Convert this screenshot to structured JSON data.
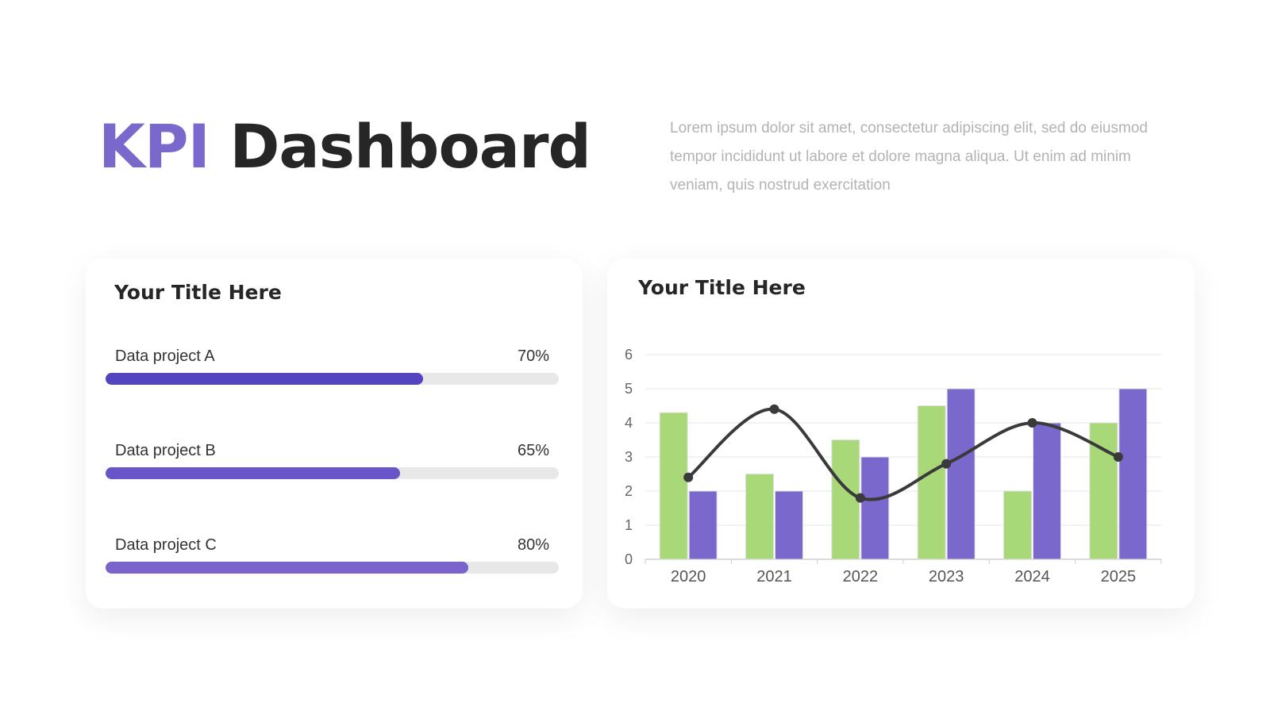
{
  "header": {
    "title": [
      "KPI",
      "Dashboard"
    ],
    "description": "Lorem ipsum dolor sit amet, consectetur adipiscing elit, sed do eiusmod tempor incididunt ut labore et dolore magna aliqua. Ut enim ad minim veniam, quis nostrud exercitation"
  },
  "chart_data": [
    {
      "type": "progress",
      "title": "Your Title Here",
      "xlim": [
        0,
        100
      ],
      "categories": [
        "Data project A",
        "Data project B",
        "Data project C"
      ],
      "values": [
        70,
        65,
        80
      ],
      "value_labels": [
        "70%",
        "65%",
        "80%"
      ],
      "colors": [
        "#5544c0",
        "#6a55c8",
        "#7a64cc"
      ]
    },
    {
      "type": "bar",
      "title": "Your Title Here",
      "categories": [
        "2020",
        "2021",
        "2022",
        "2023",
        "2024",
        "2025"
      ],
      "series": [
        {
          "color": "#a8d878",
          "values": [
            4.3,
            2.5,
            3.5,
            4.5,
            2,
            4
          ]
        },
        {
          "color": "#7b68cc",
          "values": [
            2,
            2,
            3,
            5,
            4,
            5
          ]
        },
        {
          "type": "line",
          "color": "#3a3a3a",
          "values": [
            2.4,
            4.4,
            1.8,
            2.8,
            4,
            3
          ]
        }
      ],
      "ylim": [
        0,
        6
      ],
      "yticks": [
        0,
        1,
        2,
        3,
        4,
        5,
        6
      ],
      "grid": true
    }
  ]
}
